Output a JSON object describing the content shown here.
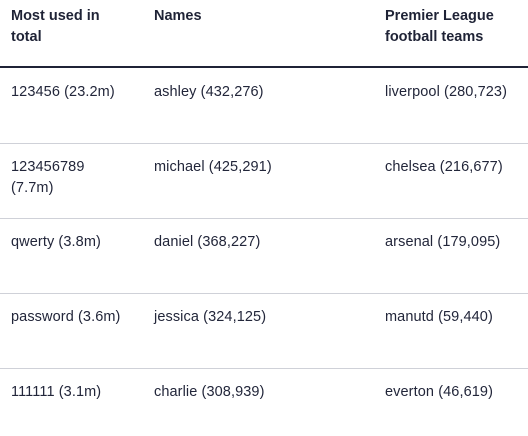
{
  "headers": [
    "Most used in total",
    "Names",
    "Premier League football teams"
  ],
  "rows": [
    [
      "123456 (23.2m)",
      "ashley (432,276)",
      "liverpool (280,723)"
    ],
    [
      "123456789 (7.7m)",
      "michael (425,291)",
      "chelsea (216,677)"
    ],
    [
      "qwerty (3.8m)",
      "daniel (368,227)",
      "arsenal (179,095)"
    ],
    [
      "password (3.6m)",
      "jessica (324,125)",
      "manutd (59,440)"
    ],
    [
      "111111 (3.1m)",
      "charlie (308,939)",
      "everton (46,619)"
    ]
  ]
}
